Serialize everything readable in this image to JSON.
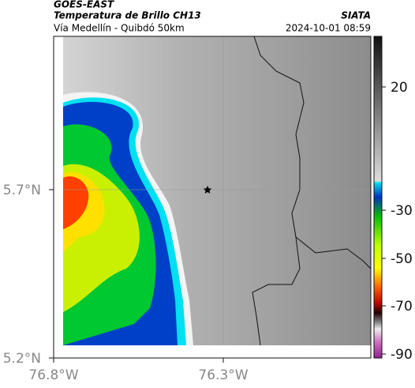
{
  "header": {
    "satellite": "GOES-EAST",
    "product": "Temperatura de Brillo CH13",
    "route": "Vía Medellín - Quibdó 50km",
    "source": "SIATA",
    "timestamp": "2024-10-01 08:59"
  },
  "axes": {
    "x_labels": [
      "76.8°W",
      "76.3°W"
    ],
    "y_labels": [
      "5.7°N",
      "5.2°N"
    ]
  },
  "colorbar": {
    "ticks": [
      20,
      -30,
      -50,
      -70,
      -90
    ]
  }
}
